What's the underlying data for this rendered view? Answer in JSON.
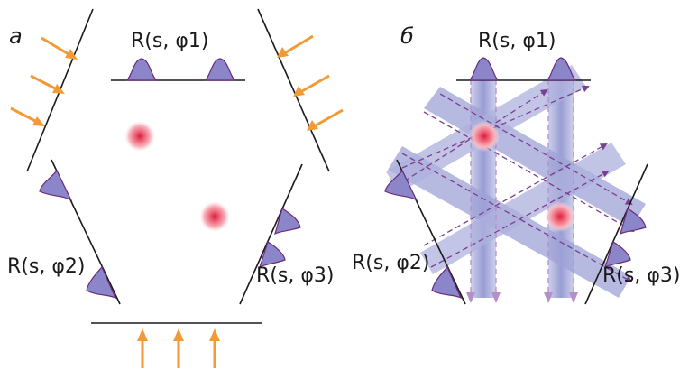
{
  "panels": {
    "a": {
      "letter": "а",
      "r1": "R(s, φ1)",
      "r2": "R(s, φ2)",
      "r3": "R(s, φ3)"
    },
    "b": {
      "letter": "б",
      "r1": "R(s, φ1)",
      "r2": "R(s, φ2)",
      "r3": "R(s, φ3)"
    }
  },
  "colors": {
    "line": "#1a1a1a",
    "bump_fill": "#8a86c9",
    "bump_stroke": "#6a2a7a",
    "arrow_orange": "#f29a35",
    "beam": "#8c90cc",
    "beam_edge": "#7a3f8f",
    "spot": "#e0304a"
  }
}
